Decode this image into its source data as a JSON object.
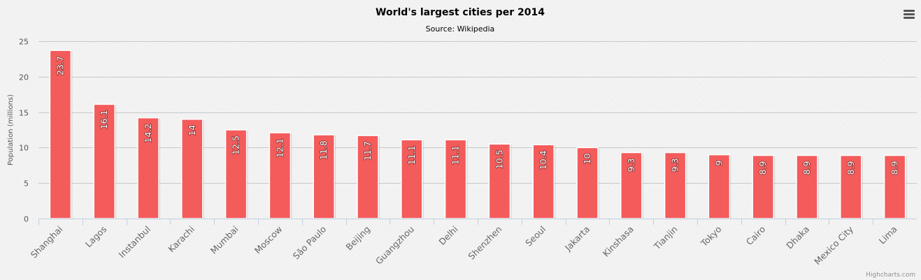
{
  "chart_data": {
    "type": "bar",
    "title": "World's largest cities per 2014",
    "subtitle": "Source: Wikipedia",
    "ylabel": "Population (millions)",
    "xlabel": "",
    "ylim": [
      0,
      25
    ],
    "yticks": [
      0,
      5,
      10,
      15,
      20,
      25
    ],
    "grid": true,
    "legend": "none",
    "bar_color": "#f45b5b",
    "categories": [
      "Shanghai",
      "Lagos",
      "Instanbul",
      "Karachi",
      "Mumbai",
      "Moscow",
      "São Paulo",
      "Beijing",
      "Guangzhou",
      "Delhi",
      "Shenzhen",
      "Seoul",
      "Jakarta",
      "Kinshasa",
      "Tianjin",
      "Tokyo",
      "Cairo",
      "Dhaka",
      "Mexico City",
      "Lima"
    ],
    "values": [
      23.7,
      16.1,
      14.2,
      14,
      12.5,
      12.1,
      11.8,
      11.7,
      11.1,
      11.1,
      10.5,
      10.4,
      10,
      9.3,
      9.3,
      9,
      8.9,
      8.9,
      8.9,
      8.9
    ],
    "data_labels": [
      "23.7",
      "16.1",
      "14.2",
      "14",
      "12.5",
      "12.1",
      "11.8",
      "11.7",
      "11.1",
      "11.1",
      "10.5",
      "10.4",
      "10",
      "9.3",
      "9.3",
      "9",
      "8.9",
      "8.9",
      "8.9",
      "8.9"
    ]
  },
  "credits": "Highcharts.com",
  "menu_icon": "hamburger-menu-icon"
}
